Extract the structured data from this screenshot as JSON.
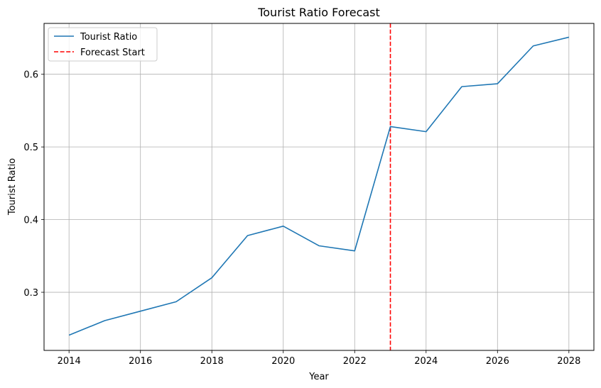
{
  "chart_data": {
    "type": "line",
    "title": "Tourist Ratio Forecast",
    "xlabel": "Year",
    "ylabel": "Tourist Ratio",
    "xlim": [
      2013.3,
      2028.7
    ],
    "ylim": [
      0.22,
      0.67
    ],
    "xticks": [
      2014,
      2016,
      2018,
      2020,
      2022,
      2024,
      2026,
      2028
    ],
    "yticks": [
      0.3,
      0.4,
      0.5,
      0.6
    ],
    "ytick_labels": [
      "0.3",
      "0.4",
      "0.5",
      "0.6"
    ],
    "grid": true,
    "legend_position": "top-left",
    "series": [
      {
        "name": "Tourist Ratio",
        "color": "#1f77b4",
        "x": [
          2014,
          2015,
          2016,
          2017,
          2018,
          2019,
          2020,
          2021,
          2022,
          2023,
          2024,
          2025,
          2026,
          2027,
          2028
        ],
        "values": [
          0.241,
          0.261,
          0.274,
          0.287,
          0.32,
          0.378,
          0.391,
          0.364,
          0.357,
          0.528,
          0.521,
          0.583,
          0.587,
          0.639,
          0.651
        ]
      }
    ],
    "vlines": [
      {
        "name": "Forecast Start",
        "x": 2023,
        "color": "#ff0000",
        "style": "dashed"
      }
    ]
  }
}
